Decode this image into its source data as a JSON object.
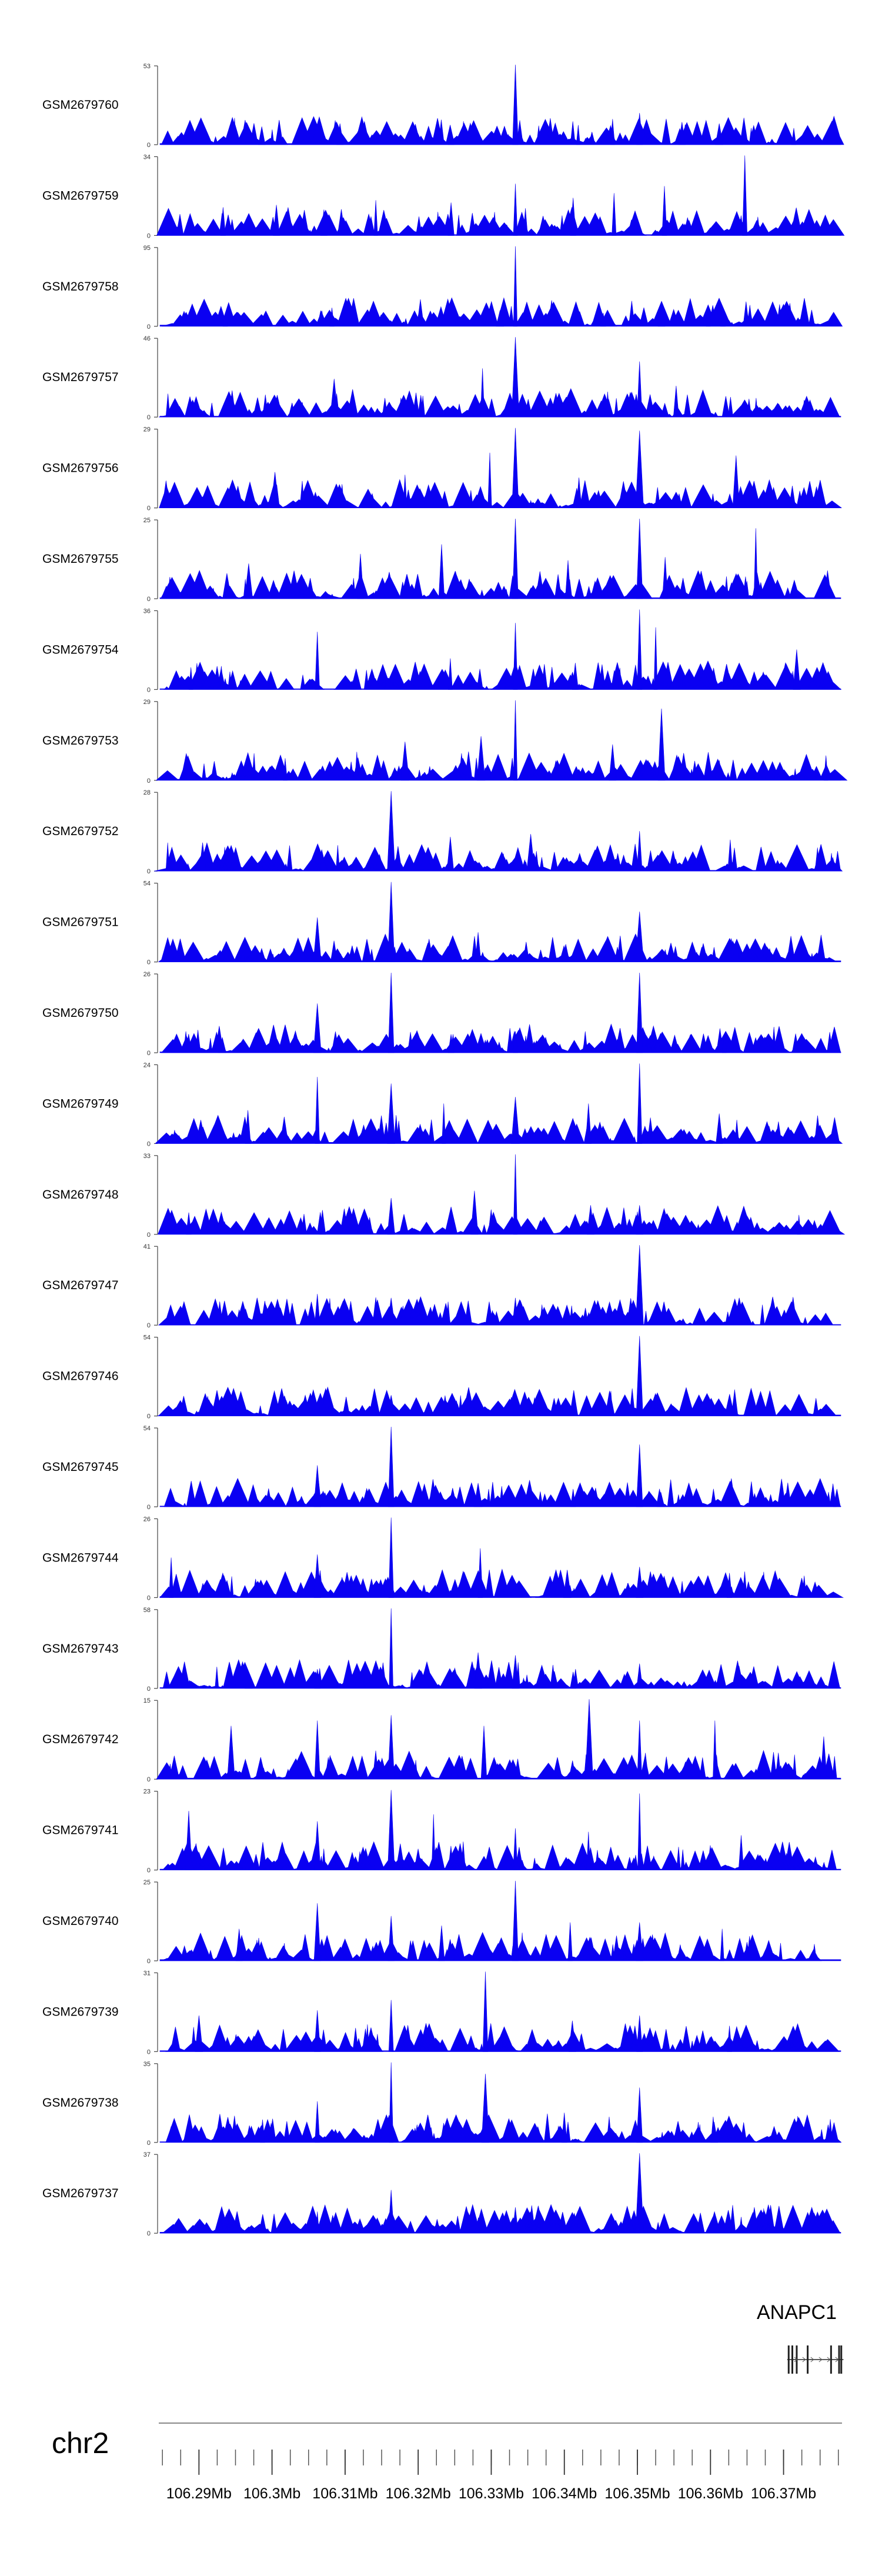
{
  "chart_data": {
    "type": "area",
    "chromosome": "chr2",
    "xlim": [
      106.2845,
      106.378
    ],
    "xunit": "Mb",
    "xticks": [
      106.29,
      106.3,
      106.31,
      106.32,
      106.33,
      106.34,
      106.35,
      106.36,
      106.37
    ],
    "xtick_labels": [
      "106.29Mb",
      "106.3Mb",
      "106.31Mb",
      "106.32Mb",
      "106.33Mb",
      "106.34Mb",
      "106.35Mb",
      "106.36Mb",
      "106.37Mb"
    ],
    "gene": {
      "name": "ANAPC1",
      "start": 106.3705,
      "end": 106.3782,
      "exons": [
        106.3707,
        106.3712,
        106.3718,
        106.3733,
        106.3765,
        106.3776,
        106.3779
      ]
    },
    "colors": {
      "coverage": "#0a00f2",
      "axis": "#444444"
    },
    "tracks": [
      {
        "name": "GSM2679760",
        "ymax": "53",
        "ymin": "0",
        "peaks": [
          [
            106.3333,
            53
          ],
          [
            106.3503,
            21
          ],
          [
            106.3466,
            17
          ],
          [
            106.3561,
            15
          ],
          [
            106.3093,
            14
          ],
          [
            106.2986,
            12
          ],
          [
            106.3419,
            13
          ],
          [
            106.3612,
            14
          ],
          [
            106.3245,
            10
          ],
          [
            106.3714,
            11
          ]
        ]
      },
      {
        "name": "GSM2679759",
        "ymax": "34",
        "ymin": "0",
        "peaks": [
          [
            106.3647,
            34
          ],
          [
            106.3333,
            22
          ],
          [
            106.3468,
            18
          ],
          [
            106.3412,
            16
          ],
          [
            106.3537,
            21
          ],
          [
            106.3142,
            15
          ],
          [
            106.3006,
            13
          ],
          [
            106.3245,
            14
          ],
          [
            106.2933,
            12
          ],
          [
            106.3071,
            11
          ]
        ]
      },
      {
        "name": "GSM2679758",
        "ymax": "95",
        "ymin": "0",
        "peaks": [
          [
            106.3333,
            95
          ],
          [
            106.3533,
            28
          ],
          [
            106.3597,
            24
          ],
          [
            106.3082,
            22
          ],
          [
            106.3312,
            19
          ],
          [
            106.3453,
            16
          ],
          [
            106.2936,
            10
          ],
          [
            106.3617,
            12
          ]
        ]
      },
      {
        "name": "GSM2679757",
        "ymax": "46",
        "ymin": "0",
        "peaks": [
          [
            106.3333,
            46
          ],
          [
            106.3503,
            32
          ],
          [
            106.3288,
            28
          ],
          [
            106.3085,
            22
          ],
          [
            106.3553,
            18
          ],
          [
            106.3197,
            14
          ],
          [
            106.3412,
            13
          ],
          [
            106.2955,
            12
          ],
          [
            106.3621,
            12
          ]
        ]
      },
      {
        "name": "GSM2679756",
        "ymax": "29",
        "ymin": "0",
        "peaks": [
          [
            106.3333,
            29
          ],
          [
            106.3503,
            28
          ],
          [
            106.3298,
            20
          ],
          [
            106.3635,
            19
          ],
          [
            106.3004,
            13
          ],
          [
            106.3182,
            12
          ],
          [
            106.342,
            11
          ],
          [
            106.3712,
            8
          ]
        ]
      },
      {
        "name": "GSM2679755",
        "ymax": "25",
        "ymin": "0",
        "peaks": [
          [
            106.3333,
            25
          ],
          [
            106.3503,
            25
          ],
          [
            106.3662,
            22
          ],
          [
            106.3232,
            17
          ],
          [
            106.3121,
            14
          ],
          [
            106.3538,
            13
          ],
          [
            106.2968,
            11
          ],
          [
            106.3405,
            12
          ]
        ]
      },
      {
        "name": "GSM2679754",
        "ymax": "36",
        "ymin": "0",
        "peaks": [
          [
            106.3503,
            36
          ],
          [
            106.3333,
            30
          ],
          [
            106.3525,
            28
          ],
          [
            106.3062,
            26
          ],
          [
            106.3244,
            14
          ],
          [
            106.3718,
            18
          ],
          [
            106.3415,
            12
          ],
          [
            106.2889,
            10
          ]
        ]
      },
      {
        "name": "GSM2679753",
        "ymax": "29",
        "ymin": "0",
        "peaks": [
          [
            106.3333,
            29
          ],
          [
            106.3533,
            26
          ],
          [
            106.3286,
            16
          ],
          [
            106.3182,
            14
          ],
          [
            106.3466,
            13
          ],
          [
            106.3018,
            8
          ],
          [
            106.3758,
            9
          ]
        ]
      },
      {
        "name": "GSM2679752",
        "ymax": "28",
        "ymin": "0",
        "peaks": [
          [
            106.3163,
            28
          ],
          [
            106.3503,
            14
          ],
          [
            106.3354,
            13
          ],
          [
            106.3244,
            12
          ],
          [
            106.3627,
            11
          ],
          [
            106.3024,
            9
          ],
          [
            106.2905,
            10
          ],
          [
            106.3774,
            7
          ]
        ]
      },
      {
        "name": "GSM2679751",
        "ymax": "54",
        "ymin": "0",
        "peaks": [
          [
            106.3163,
            54
          ],
          [
            106.3503,
            34
          ],
          [
            106.3062,
            30
          ],
          [
            106.3282,
            20
          ],
          [
            106.3402,
            12
          ],
          [
            106.3681,
            9
          ],
          [
            106.296,
            8
          ]
        ]
      },
      {
        "name": "GSM2679750",
        "ymax": "26",
        "ymin": "0",
        "peaks": [
          [
            106.3163,
            26
          ],
          [
            106.3503,
            26
          ],
          [
            106.3062,
            16
          ],
          [
            106.3333,
            7
          ],
          [
            106.3245,
            6
          ],
          [
            106.3619,
            6
          ],
          [
            106.2932,
            5
          ]
        ]
      },
      {
        "name": "GSM2679749",
        "ymax": "24",
        "ymin": "0",
        "peaks": [
          [
            106.3503,
            24
          ],
          [
            106.3062,
            20
          ],
          [
            106.3163,
            18
          ],
          [
            106.3333,
            14
          ],
          [
            106.3235,
            12
          ],
          [
            106.3433,
            12
          ],
          [
            106.2967,
            10
          ],
          [
            106.3612,
            9
          ]
        ]
      },
      {
        "name": "GSM2679748",
        "ymax": "33",
        "ymin": "0",
        "peaks": [
          [
            106.3333,
            33
          ],
          [
            106.3277,
            18
          ],
          [
            106.3163,
            15
          ],
          [
            106.3503,
            12
          ],
          [
            106.3069,
            10
          ],
          [
            106.3436,
            12
          ],
          [
            106.3721,
            8
          ],
          [
            106.2886,
            9
          ]
        ]
      },
      {
        "name": "GSM2679747",
        "ymax": "41",
        "ymin": "0",
        "peaks": [
          [
            106.3503,
            41
          ],
          [
            106.3062,
            16
          ],
          [
            106.3163,
            14
          ],
          [
            106.3333,
            14
          ],
          [
            106.3241,
            12
          ],
          [
            106.341,
            10
          ],
          [
            106.2955,
            8
          ],
          [
            106.3629,
            8
          ]
        ]
      },
      {
        "name": "GSM2679746",
        "ymax": "54",
        "ymin": "0",
        "peaks": [
          [
            106.3503,
            54
          ],
          [
            106.3163,
            14
          ],
          [
            106.3062,
            10
          ],
          [
            106.3333,
            10
          ],
          [
            106.3254,
            8
          ],
          [
            106.3612,
            8
          ],
          [
            106.2984,
            7
          ]
        ]
      },
      {
        "name": "GSM2679745",
        "ymax": "54",
        "ymin": "0",
        "peaks": [
          [
            106.3163,
            54
          ],
          [
            106.3503,
            42
          ],
          [
            106.3062,
            28
          ],
          [
            106.3282,
            16
          ],
          [
            106.3412,
            12
          ],
          [
            106.3532,
            10
          ],
          [
            106.3773,
            12
          ],
          [
            106.2921,
            6
          ]
        ]
      },
      {
        "name": "GSM2679744",
        "ymax": "26",
        "ymin": "0",
        "peaks": [
          [
            106.3163,
            26
          ],
          [
            106.3285,
            16
          ],
          [
            106.3062,
            14
          ],
          [
            106.3503,
            10
          ],
          [
            106.3404,
            9
          ],
          [
            106.2862,
            13
          ],
          [
            106.3626,
            8
          ]
        ]
      },
      {
        "name": "GSM2679743",
        "ymax": "58",
        "ymin": "0",
        "peaks": [
          [
            106.3163,
            58
          ],
          [
            106.3282,
            26
          ],
          [
            106.3333,
            24
          ],
          [
            106.3503,
            18
          ],
          [
            106.3062,
            14
          ],
          [
            106.3412,
            12
          ],
          [
            106.2968,
            8
          ]
        ]
      },
      {
        "name": "GSM2679742",
        "ymax": "15",
        "ymin": "0",
        "peaks": [
          [
            106.3434,
            15
          ],
          [
            106.3062,
            11
          ],
          [
            106.3163,
            12
          ],
          [
            106.3503,
            11
          ],
          [
            106.3606,
            11
          ],
          [
            106.2944,
            10
          ],
          [
            106.329,
            10
          ],
          [
            106.3755,
            8
          ]
        ]
      },
      {
        "name": "GSM2679741",
        "ymax": "23",
        "ymin": "0",
        "peaks": [
          [
            106.3163,
            23
          ],
          [
            106.3503,
            22
          ],
          [
            106.2886,
            17
          ],
          [
            106.3221,
            16
          ],
          [
            106.3062,
            14
          ],
          [
            106.3333,
            12
          ],
          [
            106.3433,
            11
          ],
          [
            106.3642,
            10
          ]
        ]
      },
      {
        "name": "GSM2679740",
        "ymax": "25",
        "ymin": "0",
        "peaks": [
          [
            106.3333,
            25
          ],
          [
            106.3062,
            18
          ],
          [
            106.3163,
            14
          ],
          [
            106.3503,
            12
          ],
          [
            106.3408,
            12
          ],
          [
            106.3232,
            11
          ],
          [
            106.2955,
            10
          ],
          [
            106.3616,
            10
          ]
        ]
      },
      {
        "name": "GSM2679739",
        "ymax": "31",
        "ymin": "0",
        "peaks": [
          [
            106.3292,
            31
          ],
          [
            106.3163,
            20
          ],
          [
            106.3062,
            16
          ],
          [
            106.3503,
            14
          ],
          [
            106.3411,
            12
          ],
          [
            106.29,
            14
          ],
          [
            106.3626,
            10
          ]
        ]
      },
      {
        "name": "GSM2679738",
        "ymax": "35",
        "ymin": "0",
        "peaks": [
          [
            106.3163,
            35
          ],
          [
            106.3292,
            30
          ],
          [
            106.3503,
            24
          ],
          [
            106.3062,
            18
          ],
          [
            106.34,
            13
          ],
          [
            106.2987,
            10
          ],
          [
            106.3605,
            9
          ]
        ]
      },
      {
        "name": "GSM2679737",
        "ymax": "37",
        "ymin": "0",
        "peaks": [
          [
            106.3503,
            37
          ],
          [
            106.3163,
            20
          ],
          [
            106.3333,
            12
          ],
          [
            106.3062,
            10
          ],
          [
            106.366,
            12
          ],
          [
            106.3254,
            8
          ],
          [
            106.293,
            6
          ],
          [
            106.3715,
            7
          ]
        ]
      }
    ]
  }
}
